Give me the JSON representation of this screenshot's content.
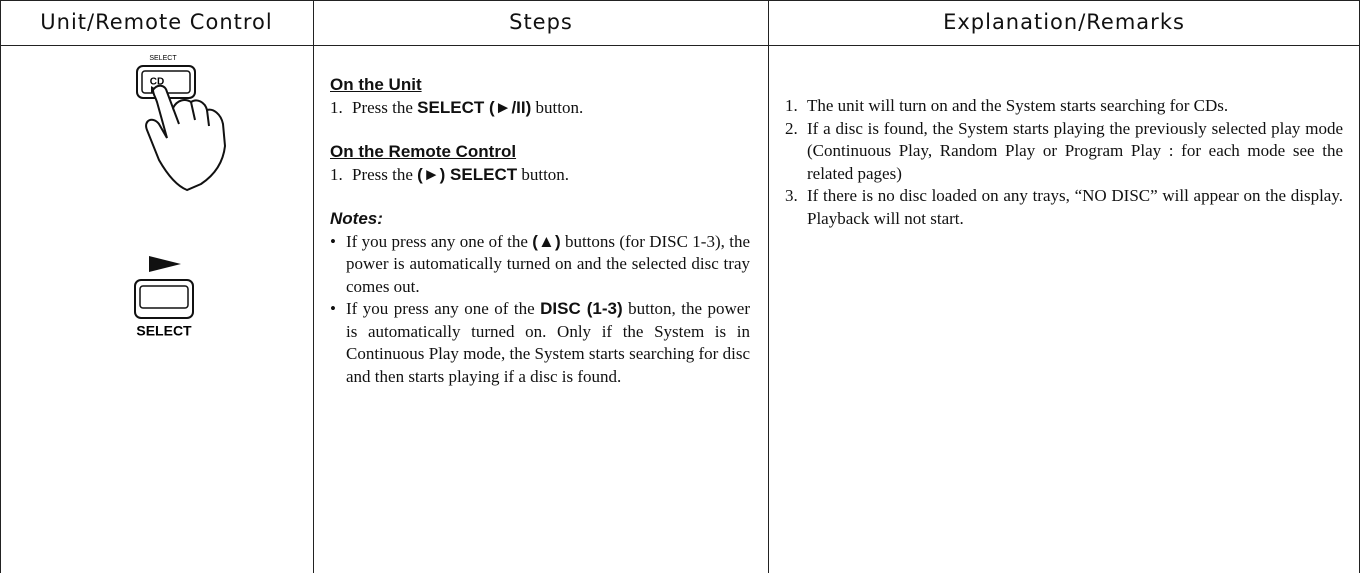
{
  "header": {
    "col1": "Unit/Remote Control",
    "col2": "Steps",
    "col3": "Explanation/Remarks"
  },
  "illustrations": {
    "unit_button_caption": "SELECT",
    "unit_button_label": "CD",
    "remote_button_label": "SELECT"
  },
  "steps": {
    "unit": {
      "heading": "On the Unit",
      "number": "1.",
      "before": "Press the ",
      "bold": "SELECT (►/II)",
      "after": " button."
    },
    "remote": {
      "heading": "On the Remote Control",
      "number": "1.",
      "before": "Press the ",
      "bold": "(►) SELECT",
      "after": " button."
    },
    "notes": {
      "heading": "Notes:",
      "items": [
        {
          "before": "If you press any one of the ",
          "bold": "(▲)",
          "after": " buttons (for DISC 1-3), the power is automatically turned on and the selected disc tray comes out."
        },
        {
          "before": "If you press any one of the ",
          "bold": "DISC (1-3)",
          "after": " button, the power is automatically turned on. Only if the System is in Continuous Play mode, the System starts searching for disc and then starts playing if a disc is found."
        }
      ]
    }
  },
  "remarks": {
    "items": [
      {
        "number": "1.",
        "text": "The unit will turn on and the System starts searching for CDs."
      },
      {
        "number": "2.",
        "text": "If a disc is found, the System starts playing the previously selected play mode (Continuous Play, Random Play or Program Play : for each mode see the related pages)"
      },
      {
        "number": "3.",
        "text": "If there is no disc loaded on any trays, “NO DISC” will appear on the display. Playback will not start."
      }
    ]
  }
}
